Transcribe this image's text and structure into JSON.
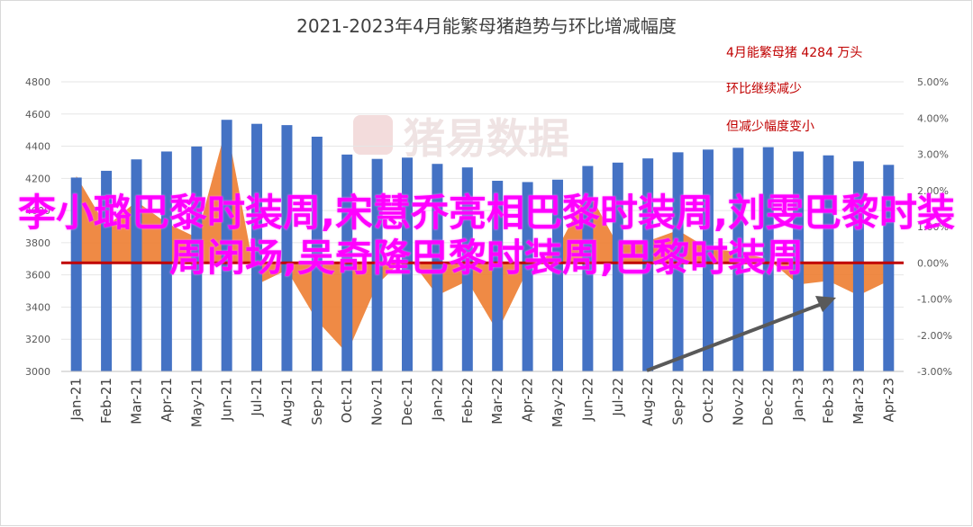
{
  "chart_data": {
    "type": "bar",
    "title": "2021-2023年4月能繁母猪趋势与环比增减幅度",
    "categories": [
      "Jan-21",
      "Feb-21",
      "Mar-21",
      "Apr-21",
      "May-21",
      "Jun-21",
      "Jul-21",
      "Aug-21",
      "Sep-21",
      "Oct-21",
      "Nov-21",
      "Dec-21",
      "Jan-22",
      "Feb-22",
      "Mar-22",
      "Apr-22",
      "May-22",
      "Jun-22",
      "Jul-22",
      "Aug-22",
      "Sep-22",
      "Oct-22",
      "Nov-22",
      "Dec-22",
      "Jan-23",
      "Feb-23",
      "Mar-23",
      "Apr-23"
    ],
    "series": [
      {
        "axis": "left",
        "type": "bar",
        "color": "#4472c4",
        "values": [
          4205,
          4247,
          4318,
          4367,
          4398,
          4564,
          4539,
          4531,
          4459,
          4348,
          4321,
          4329,
          4290,
          4268,
          4185,
          4177,
          4192,
          4277,
          4298,
          4324,
          4362,
          4379,
          4390,
          4394,
          4367,
          4343,
          4306,
          4284
        ]
      },
      {
        "axis": "right",
        "type": "area",
        "color": "#ed7d31",
        "values": [
          2.4,
          1.0,
          1.7,
          1.1,
          0.7,
          3.8,
          -0.6,
          -0.2,
          -1.6,
          -2.5,
          -0.6,
          0.2,
          -0.9,
          -0.5,
          -1.9,
          -0.2,
          0.4,
          2.0,
          0.5,
          0.6,
          0.9,
          0.4,
          0.3,
          0.1,
          -0.6,
          -0.5,
          -0.9,
          -0.5
        ]
      }
    ],
    "y_left": {
      "min": 3000,
      "max": 4800,
      "ticks": [
        "3000",
        "3200",
        "3400",
        "3600",
        "3800",
        "4000",
        "4200",
        "4400",
        "4600",
        "4800"
      ]
    },
    "y_right": {
      "min": -3.0,
      "max": 5.0,
      "ticks": [
        "-3.00%",
        "-2.00%",
        "-1.00%",
        "0.00%",
        "1.00%",
        "2.00%",
        "3.00%",
        "4.00%",
        "5.00%"
      ]
    },
    "annotations": [
      "4月能繁母猪 4284 万头",
      "环比继续减少",
      "但减少幅度变小"
    ],
    "watermark": "猪易数据",
    "colors": {
      "bar": "#4472c4",
      "area": "#ed7d31",
      "zero_line": "#c00000",
      "arrow": "#595959",
      "annotation": "#c00000"
    }
  },
  "overlay_text": "李小璐巴黎时装周,宋慧乔亮相巴黎时装周,刘雯巴黎时装周闭场,吴奇隆巴黎时装周,巴黎时装周"
}
